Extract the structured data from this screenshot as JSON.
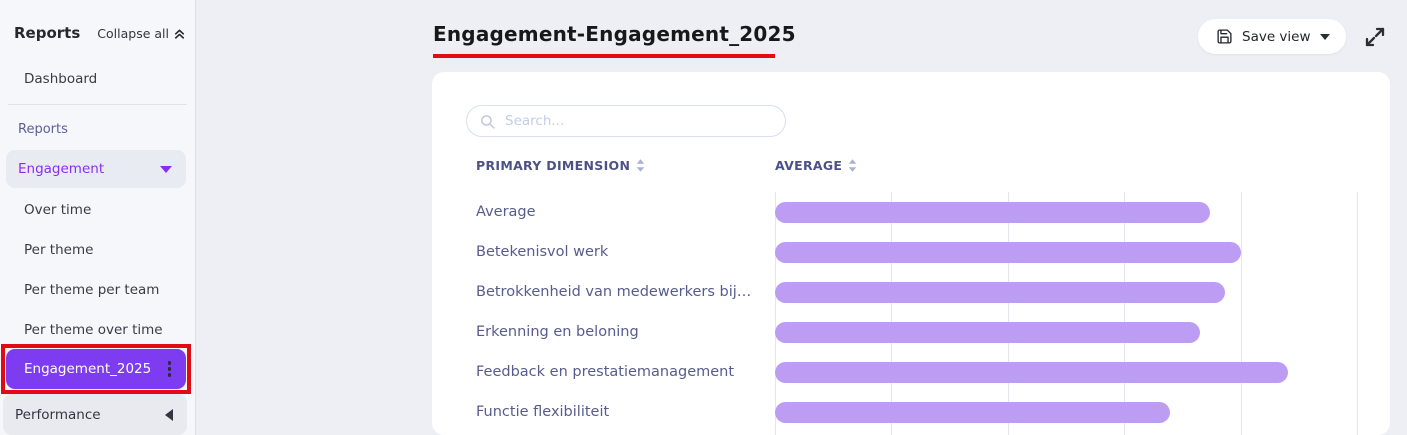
{
  "colors": {
    "accent_purple": "#7e3cf1",
    "bar_purple": "#bd9df3",
    "annotation_red": "#e30b13",
    "header_text": "#4d5286",
    "row_text": "#575c8e",
    "group_text_purple": "#8a2df2",
    "card_bg": "#ffffff",
    "page_bg": "#edeff4"
  },
  "sidebar": {
    "heading": "Reports",
    "collapse_all_label": "Collapse all",
    "dashboard_label": "Dashboard",
    "section_label": "Reports",
    "groups": [
      {
        "label": "Engagement",
        "state": "expanded"
      },
      {
        "label": "Performance",
        "state": "collapsed"
      }
    ],
    "engagement_children": [
      "Over time",
      "Per theme",
      "Per theme per team",
      "Per theme over time"
    ],
    "selected_report": "Engagement_2025"
  },
  "header": {
    "title": "Engagement-Engagement_2025",
    "save_view_label": "Save view"
  },
  "panel": {
    "search_placeholder": "Search...",
    "columns": [
      "PRIMARY DIMENSION",
      "AVERAGE"
    ]
  },
  "chart_data": {
    "type": "bar",
    "orientation": "horizontal",
    "title": "Engagement-Engagement_2025",
    "category_axis_label": "PRIMARY DIMENSION",
    "value_axis_label": "AVERAGE",
    "categories": [
      "Average",
      "Betekenisvol werk",
      "Betrokkenheid van medewerkers bij…",
      "Erkenning en beloning",
      "Feedback en prestatiemanagement",
      "Functie flexibiliteit"
    ],
    "values": [
      3.74,
      4.0,
      3.87,
      3.65,
      4.41,
      3.39
    ],
    "xlim": [
      0,
      5
    ],
    "gridline_step": 1,
    "grid": true,
    "legend": false
  }
}
